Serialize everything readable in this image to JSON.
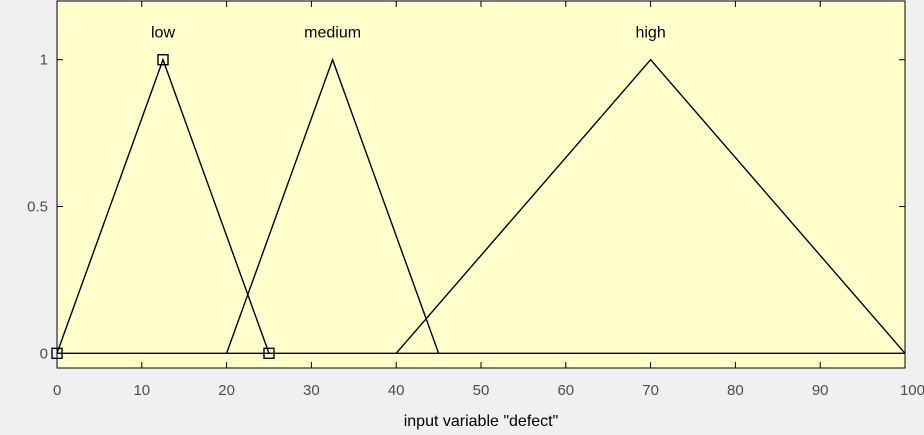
{
  "colors": {
    "figure_bg": "#f0f0f0",
    "plot_bg": "#ffffcc",
    "line": "#000000",
    "tick_text": "#4d4d4d"
  },
  "chart_data": {
    "type": "line",
    "xlabel": "input variable \"defect\"",
    "xlim": [
      0,
      100
    ],
    "ylim": [
      -0.05,
      1.2
    ],
    "xticks": [
      0,
      10,
      20,
      30,
      40,
      50,
      60,
      70,
      80,
      90,
      100
    ],
    "yticks": [
      0,
      0.5,
      1
    ],
    "ytick_labels": [
      "0",
      "0.5",
      "1"
    ],
    "grid": false,
    "series": [
      {
        "name": "low",
        "x": [
          0,
          12.5,
          25
        ],
        "y": [
          0,
          1,
          0
        ],
        "selected": true
      },
      {
        "name": "medium",
        "x": [
          20,
          32.5,
          45
        ],
        "y": [
          0,
          1,
          0
        ]
      },
      {
        "name": "high",
        "x": [
          40,
          70,
          100
        ],
        "y": [
          0,
          1,
          0
        ]
      }
    ],
    "baseline": {
      "x": [
        0,
        100
      ],
      "y": [
        0,
        0
      ]
    }
  }
}
